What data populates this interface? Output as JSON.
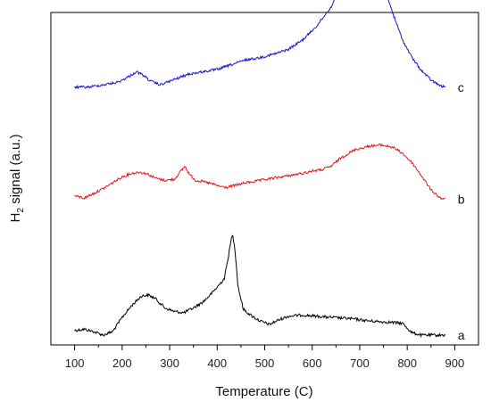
{
  "chart_data": {
    "type": "line",
    "title": "",
    "xlabel": "Temperature (C)",
    "ylabel_main": "H",
    "ylabel_sub": "2",
    "ylabel_rest": " signal (a.u.)",
    "xlim": [
      50,
      950
    ],
    "xticks": [
      100,
      200,
      300,
      400,
      500,
      600,
      700,
      800,
      900
    ],
    "yticks_shown": false,
    "grid": false,
    "legend": "none",
    "series": [
      {
        "name": "a",
        "color": "#000000",
        "noise": 1.6,
        "points": [
          [
            100,
            0.94
          ],
          [
            120,
            0.95
          ],
          [
            140,
            0.93
          ],
          [
            160,
            0.9
          ],
          [
            180,
            0.93
          ],
          [
            200,
            1.05
          ],
          [
            220,
            1.15
          ],
          [
            240,
            1.23
          ],
          [
            255,
            1.24
          ],
          [
            270,
            1.21
          ],
          [
            290,
            1.13
          ],
          [
            310,
            1.1
          ],
          [
            330,
            1.09
          ],
          [
            350,
            1.13
          ],
          [
            370,
            1.18
          ],
          [
            390,
            1.26
          ],
          [
            405,
            1.33
          ],
          [
            415,
            1.38
          ],
          [
            425,
            1.6
          ],
          [
            432,
            1.76
          ],
          [
            437,
            1.65
          ],
          [
            444,
            1.31
          ],
          [
            455,
            1.12
          ],
          [
            470,
            1.07
          ],
          [
            490,
            1.02
          ],
          [
            510,
            0.99
          ],
          [
            530,
            1.03
          ],
          [
            550,
            1.06
          ],
          [
            580,
            1.07
          ],
          [
            610,
            1.06
          ],
          [
            640,
            1.05
          ],
          [
            680,
            1.04
          ],
          [
            720,
            1.02
          ],
          [
            760,
            1.01
          ],
          [
            790,
            1.0
          ],
          [
            810,
            0.92
          ],
          [
            830,
            0.9
          ],
          [
            860,
            0.9
          ],
          [
            880,
            0.9
          ]
        ]
      },
      {
        "name": "b",
        "color": "#e8151b",
        "noise": 1.4,
        "points": [
          [
            100,
            2.08
          ],
          [
            120,
            2.06
          ],
          [
            140,
            2.1
          ],
          [
            160,
            2.14
          ],
          [
            180,
            2.19
          ],
          [
            200,
            2.24
          ],
          [
            220,
            2.27
          ],
          [
            235,
            2.28
          ],
          [
            250,
            2.27
          ],
          [
            270,
            2.23
          ],
          [
            290,
            2.21
          ],
          [
            310,
            2.22
          ],
          [
            322,
            2.28
          ],
          [
            332,
            2.33
          ],
          [
            342,
            2.26
          ],
          [
            355,
            2.21
          ],
          [
            370,
            2.2
          ],
          [
            390,
            2.18
          ],
          [
            405,
            2.16
          ],
          [
            420,
            2.15
          ],
          [
            440,
            2.17
          ],
          [
            460,
            2.19
          ],
          [
            490,
            2.21
          ],
          [
            520,
            2.23
          ],
          [
            550,
            2.25
          ],
          [
            580,
            2.27
          ],
          [
            600,
            2.29
          ],
          [
            620,
            2.3
          ],
          [
            640,
            2.33
          ],
          [
            660,
            2.4
          ],
          [
            690,
            2.47
          ],
          [
            720,
            2.5
          ],
          [
            745,
            2.51
          ],
          [
            770,
            2.49
          ],
          [
            790,
            2.44
          ],
          [
            810,
            2.36
          ],
          [
            830,
            2.25
          ],
          [
            850,
            2.13
          ],
          [
            870,
            2.06
          ],
          [
            880,
            2.05
          ]
        ]
      },
      {
        "name": "c",
        "color": "#1515d8",
        "noise": 1.4,
        "points": [
          [
            100,
            3.0
          ],
          [
            130,
            3.0
          ],
          [
            160,
            3.02
          ],
          [
            190,
            3.04
          ],
          [
            210,
            3.08
          ],
          [
            230,
            3.13
          ],
          [
            245,
            3.1
          ],
          [
            260,
            3.05
          ],
          [
            280,
            3.02
          ],
          [
            300,
            3.05
          ],
          [
            320,
            3.08
          ],
          [
            340,
            3.11
          ],
          [
            370,
            3.13
          ],
          [
            400,
            3.15
          ],
          [
            430,
            3.19
          ],
          [
            460,
            3.23
          ],
          [
            490,
            3.25
          ],
          [
            520,
            3.28
          ],
          [
            550,
            3.32
          ],
          [
            580,
            3.4
          ],
          [
            610,
            3.52
          ],
          [
            640,
            3.68
          ],
          [
            660,
            3.85
          ],
          [
            680,
            4.02
          ],
          [
            700,
            4.12
          ],
          [
            715,
            4.15
          ],
          [
            730,
            4.08
          ],
          [
            750,
            3.87
          ],
          [
            770,
            3.62
          ],
          [
            790,
            3.4
          ],
          [
            810,
            3.25
          ],
          [
            830,
            3.14
          ],
          [
            850,
            3.06
          ],
          [
            870,
            3.01
          ],
          [
            880,
            3.0
          ]
        ]
      }
    ]
  }
}
